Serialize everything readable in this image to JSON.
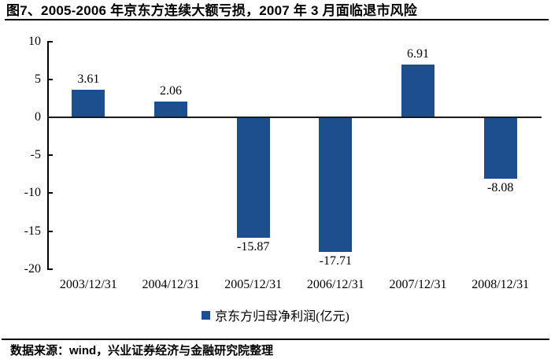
{
  "title": "图7、2005-2006 年京东方连续大额亏损，2007 年 3 月面临退市风险",
  "legend": {
    "label": "京东方归母净利润(亿元)",
    "marker_color": "#1d4e8e"
  },
  "footer": {
    "source_label": "数据来源：wind，兴业证券经济与金融研究院整理"
  },
  "colors": {
    "bar": "#1d4e8e",
    "axis": "#000000"
  },
  "chart_data": {
    "type": "bar",
    "title": "图7、2005-2006 年京东方连续大额亏损，2007 年 3 月面临退市风险",
    "categories": [
      "2003/12/31",
      "2004/12/31",
      "2005/12/31",
      "2006/12/31",
      "2007/12/31",
      "2008/12/31"
    ],
    "series": [
      {
        "name": "京东方归母净利润(亿元)",
        "values": [
          3.61,
          2.06,
          -15.87,
          -17.71,
          6.91,
          -8.08
        ],
        "data_labels": [
          "3.61",
          "2.06",
          "-15.87",
          "-17.71",
          "6.91",
          "-8.08"
        ],
        "color": "#1d4e8e"
      }
    ],
    "xlabel": "",
    "ylabel": "",
    "ylim": [
      -20,
      10
    ],
    "yticks": [
      10,
      5,
      0,
      -5,
      -10,
      -15,
      -20
    ],
    "grid": false,
    "legend_position": "bottom",
    "data_labels_shown": true
  }
}
